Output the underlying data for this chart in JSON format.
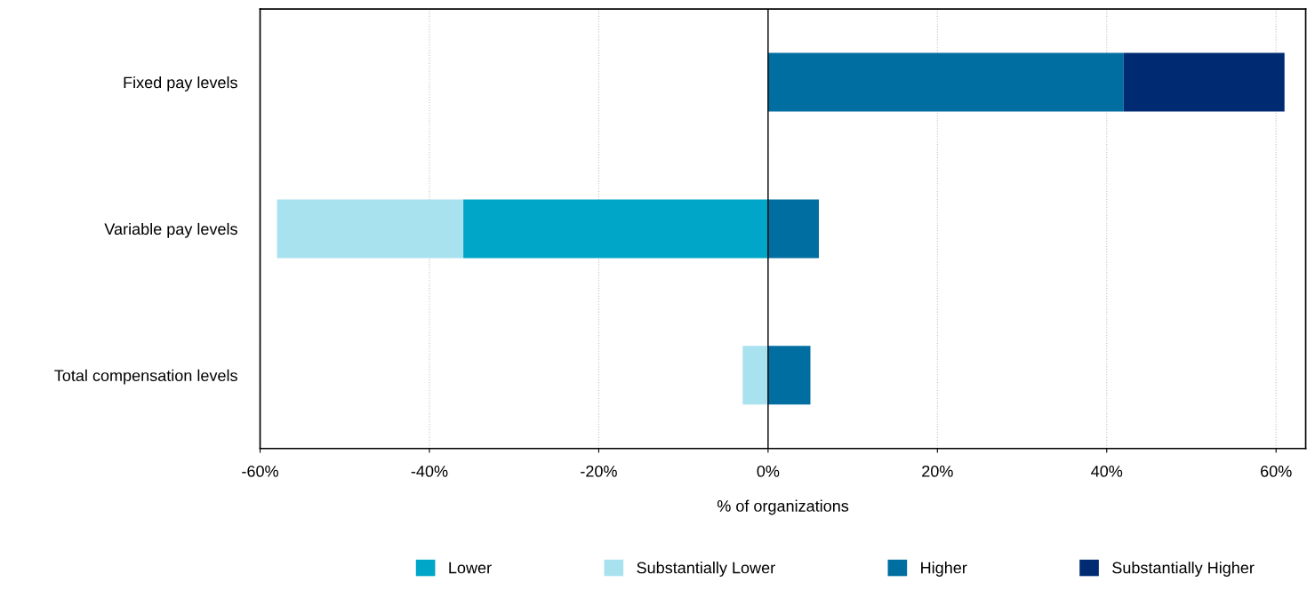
{
  "chart_data": {
    "type": "bar",
    "orientation": "horizontal",
    "stacked": true,
    "categories": [
      "Fixed pay levels",
      "Variable pay levels",
      "Total compensation levels"
    ],
    "series": [
      {
        "name": "Lower",
        "color": "#00a6c8",
        "values": [
          0,
          -36,
          0
        ]
      },
      {
        "name": "Substantially Lower",
        "color": "#a8e2ef",
        "values": [
          0,
          -22,
          -3
        ]
      },
      {
        "name": "Higher",
        "color": "#006ea0",
        "values": [
          42,
          6,
          5
        ]
      },
      {
        "name": "Substantially Higher",
        "color": "#002b72",
        "values": [
          19,
          0,
          0
        ]
      }
    ],
    "xlabel": "% of organizations",
    "xlim": [
      -60,
      63.5
    ],
    "xticks": [
      {
        "value": -60,
        "label": "-60%"
      },
      {
        "value": -40,
        "label": "-40%"
      },
      {
        "value": -20,
        "label": "-20%"
      },
      {
        "value": 0,
        "label": "0%"
      },
      {
        "value": 20,
        "label": "20%"
      },
      {
        "value": 40,
        "label": "40%"
      },
      {
        "value": 60,
        "label": "60%"
      }
    ],
    "ref_lines": [
      {
        "axis": "x",
        "value": 0,
        "color": "#000000"
      }
    ],
    "grid": "x",
    "legend": "bottom"
  }
}
